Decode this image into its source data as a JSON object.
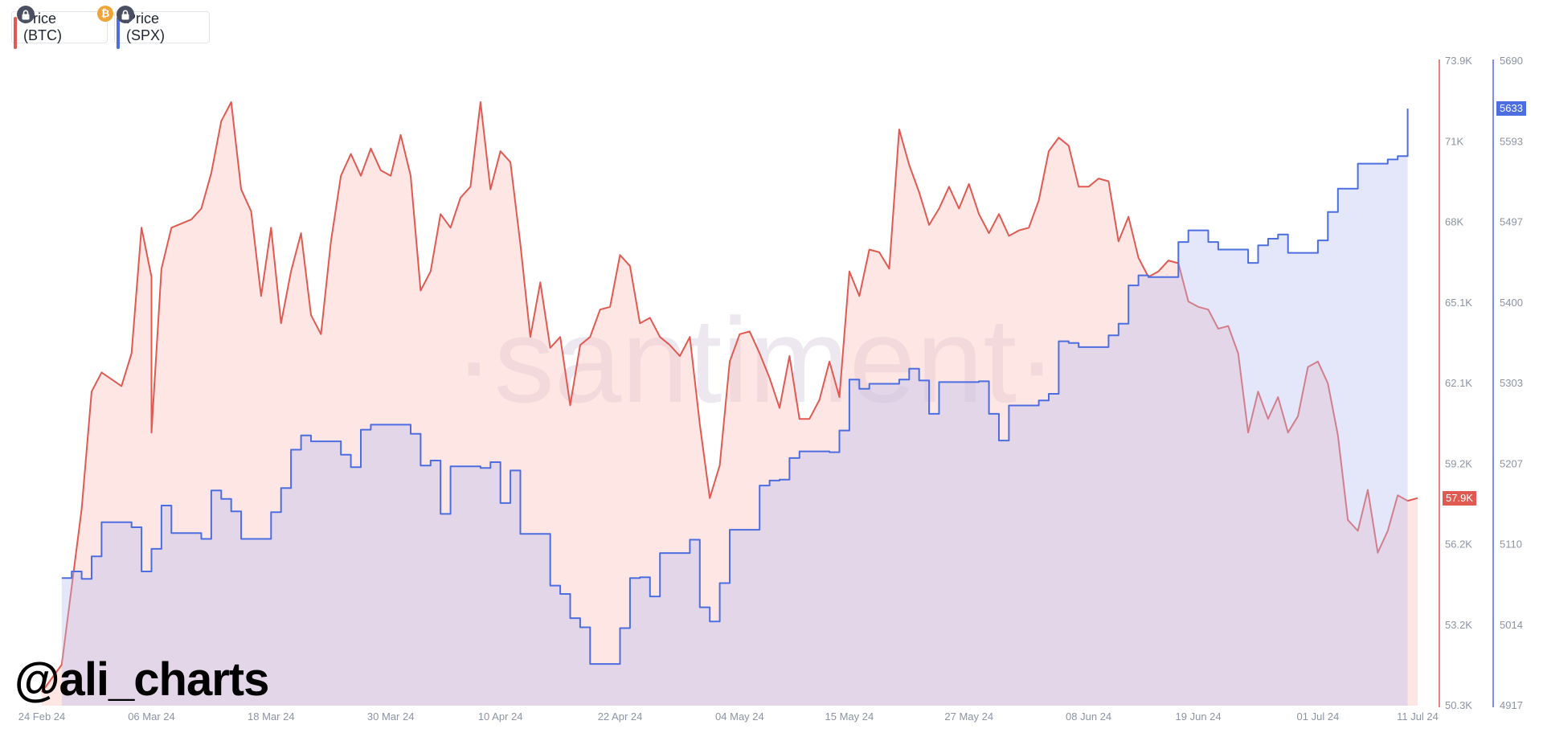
{
  "legend": {
    "btc_label": "Price (BTC)",
    "spx_label": "Price (SPX)",
    "btc_color": "#e05a52",
    "spx_color": "#4d6ee0",
    "coin_symbol": "₿"
  },
  "watermark": {
    "brand": "·santiment·",
    "handle": "@ali_charts"
  },
  "chart_data": {
    "type": "area",
    "x_labels": [
      "24 Feb 24",
      "06 Mar 24",
      "18 Mar 24",
      "30 Mar 24",
      "10 Apr 24",
      "22 Apr 24",
      "04 May 24",
      "15 May 24",
      "27 May 24",
      "08 Jun 24",
      "19 Jun 24",
      "01 Jul 24",
      "11 Jul 24"
    ],
    "btc_axis": {
      "ticks": [
        "73.9K",
        "71K",
        "68K",
        "65.1K",
        "62.1K",
        "59.2K",
        "56.2K",
        "53.2K",
        "50.3K"
      ],
      "min": 50300,
      "max": 73900
    },
    "spx_axis": {
      "ticks": [
        "5690",
        "5593",
        "5497",
        "5400",
        "5303",
        "5207",
        "5110",
        "5014",
        "4917"
      ],
      "min": 4917,
      "max": 5690
    },
    "current": {
      "btc_label": "57.9K",
      "btc_value": 57900,
      "spx_label": "5633",
      "spx_value": 5633
    },
    "series": [
      {
        "name": "Price (BTC)",
        "axis": "btc",
        "points": [
          [
            "24 Feb 24",
            50800
          ],
          [
            "26 Feb 24",
            51800
          ],
          [
            "28 Feb 24",
            57500
          ],
          [
            "29 Feb 24",
            61800
          ],
          [
            "01 Mar 24",
            62500
          ],
          [
            "03 Mar 24",
            62000
          ],
          [
            "04 Mar 24",
            63200
          ],
          [
            "05 Mar 24",
            67800
          ],
          [
            "06 Mar 24",
            66000
          ],
          [
            "06 Mar 24",
            60300
          ],
          [
            "07 Mar 24",
            66300
          ],
          [
            "08 Mar 24",
            67800
          ],
          [
            "10 Mar 24",
            68100
          ],
          [
            "11 Mar 24",
            68500
          ],
          [
            "12 Mar 24",
            69800
          ],
          [
            "13 Mar 24",
            71700
          ],
          [
            "14 Mar 24",
            72400
          ],
          [
            "15 Mar 24",
            69200
          ],
          [
            "16 Mar 24",
            68400
          ],
          [
            "17 Mar 24",
            65300
          ],
          [
            "18 Mar 24",
            67800
          ],
          [
            "19 Mar 24",
            64300
          ],
          [
            "20 Mar 24",
            66200
          ],
          [
            "21 Mar 24",
            67600
          ],
          [
            "22 Mar 24",
            64600
          ],
          [
            "23 Mar 24",
            63900
          ],
          [
            "24 Mar 24",
            67300
          ],
          [
            "25 Mar 24",
            69700
          ],
          [
            "26 Mar 24",
            70500
          ],
          [
            "27 Mar 24",
            69700
          ],
          [
            "28 Mar 24",
            70700
          ],
          [
            "29 Mar 24",
            69900
          ],
          [
            "30 Mar 24",
            69700
          ],
          [
            "31 Mar 24",
            71200
          ],
          [
            "01 Apr 24",
            69700
          ],
          [
            "02 Apr 24",
            65500
          ],
          [
            "03 Apr 24",
            66200
          ],
          [
            "04 Apr 24",
            68300
          ],
          [
            "05 Apr 24",
            67800
          ],
          [
            "06 Apr 24",
            68900
          ],
          [
            "07 Apr 24",
            69300
          ],
          [
            "08 Apr 24",
            72400
          ],
          [
            "09 Apr 24",
            69200
          ],
          [
            "10 Apr 24",
            70600
          ],
          [
            "11 Apr 24",
            70200
          ],
          [
            "12 Apr 24",
            67200
          ],
          [
            "13 Apr 24",
            63800
          ],
          [
            "14 Apr 24",
            65800
          ],
          [
            "15 Apr 24",
            63400
          ],
          [
            "16 Apr 24",
            63800
          ],
          [
            "17 Apr 24",
            61300
          ],
          [
            "18 Apr 24",
            63500
          ],
          [
            "19 Apr 24",
            63800
          ],
          [
            "20 Apr 24",
            64800
          ],
          [
            "21 Apr 24",
            64900
          ],
          [
            "22 Apr 24",
            66800
          ],
          [
            "23 Apr 24",
            66400
          ],
          [
            "24 Apr 24",
            64300
          ],
          [
            "25 Apr 24",
            64500
          ],
          [
            "26 Apr 24",
            63800
          ],
          [
            "27 Apr 24",
            63500
          ],
          [
            "28 Apr 24",
            63100
          ],
          [
            "29 Apr 24",
            63800
          ],
          [
            "30 Apr 24",
            60600
          ],
          [
            "01 May 24",
            57900
          ],
          [
            "02 May 24",
            59100
          ],
          [
            "03 May 24",
            62900
          ],
          [
            "04 May 24",
            63900
          ],
          [
            "05 May 24",
            64000
          ],
          [
            "06 May 24",
            63200
          ],
          [
            "07 May 24",
            62300
          ],
          [
            "08 May 24",
            61200
          ],
          [
            "09 May 24",
            63100
          ],
          [
            "10 May 24",
            60800
          ],
          [
            "11 May 24",
            60800
          ],
          [
            "12 May 24",
            61500
          ],
          [
            "13 May 24",
            62900
          ],
          [
            "14 May 24",
            61600
          ],
          [
            "15 May 24",
            66200
          ],
          [
            "16 May 24",
            65300
          ],
          [
            "17 May 24",
            67000
          ],
          [
            "18 May 24",
            66900
          ],
          [
            "19 May 24",
            66300
          ],
          [
            "20 May 24",
            71400
          ],
          [
            "21 May 24",
            70100
          ],
          [
            "22 May 24",
            69100
          ],
          [
            "23 May 24",
            67900
          ],
          [
            "24 May 24",
            68500
          ],
          [
            "25 May 24",
            69300
          ],
          [
            "26 May 24",
            68500
          ],
          [
            "27 May 24",
            69400
          ],
          [
            "28 May 24",
            68300
          ],
          [
            "29 May 24",
            67600
          ],
          [
            "30 May 24",
            68300
          ],
          [
            "31 May 24",
            67500
          ],
          [
            "01 Jun 24",
            67700
          ],
          [
            "02 Jun 24",
            67800
          ],
          [
            "03 Jun 24",
            68800
          ],
          [
            "04 Jun 24",
            70600
          ],
          [
            "05 Jun 24",
            71100
          ],
          [
            "06 Jun 24",
            70800
          ],
          [
            "07 Jun 24",
            69300
          ],
          [
            "08 Jun 24",
            69300
          ],
          [
            "09 Jun 24",
            69600
          ],
          [
            "10 Jun 24",
            69500
          ],
          [
            "11 Jun 24",
            67300
          ],
          [
            "12 Jun 24",
            68200
          ],
          [
            "13 Jun 24",
            66700
          ],
          [
            "14 Jun 24",
            66000
          ],
          [
            "15 Jun 24",
            66200
          ],
          [
            "16 Jun 24",
            66600
          ],
          [
            "17 Jun 24",
            66500
          ],
          [
            "18 Jun 24",
            65100
          ],
          [
            "19 Jun 24",
            64900
          ],
          [
            "20 Jun 24",
            64800
          ],
          [
            "21 Jun 24",
            64100
          ],
          [
            "22 Jun 24",
            64200
          ],
          [
            "23 Jun 24",
            63200
          ],
          [
            "24 Jun 24",
            60300
          ],
          [
            "25 Jun 24",
            61800
          ],
          [
            "26 Jun 24",
            60800
          ],
          [
            "27 Jun 24",
            61600
          ],
          [
            "28 Jun 24",
            60300
          ],
          [
            "29 Jun 24",
            60900
          ],
          [
            "30 Jun 24",
            62700
          ],
          [
            "01 Jul 24",
            62900
          ],
          [
            "02 Jul 24",
            62100
          ],
          [
            "03 Jul 24",
            60200
          ],
          [
            "04 Jul 24",
            57100
          ],
          [
            "05 Jul 24",
            56700
          ],
          [
            "06 Jul 24",
            58200
          ],
          [
            "07 Jul 24",
            55900
          ],
          [
            "08 Jul 24",
            56700
          ],
          [
            "09 Jul 24",
            58000
          ],
          [
            "10 Jul 24",
            57800
          ],
          [
            "11 Jul 24",
            57900
          ]
        ]
      },
      {
        "name": "Price (SPX)",
        "axis": "spx",
        "points": [
          [
            "26 Feb 24",
            5070
          ],
          [
            "27 Feb 24",
            5078
          ],
          [
            "28 Feb 24",
            5069
          ],
          [
            "29 Feb 24",
            5096
          ],
          [
            "01 Mar 24",
            5137
          ],
          [
            "04 Mar 24",
            5131
          ],
          [
            "05 Mar 24",
            5078
          ],
          [
            "06 Mar 24",
            5105
          ],
          [
            "07 Mar 24",
            5157
          ],
          [
            "08 Mar 24",
            5124
          ],
          [
            "11 Mar 24",
            5117
          ],
          [
            "12 Mar 24",
            5175
          ],
          [
            "13 Mar 24",
            5165
          ],
          [
            "14 Mar 24",
            5150
          ],
          [
            "15 Mar 24",
            5117
          ],
          [
            "18 Mar 24",
            5149
          ],
          [
            "19 Mar 24",
            5178
          ],
          [
            "20 Mar 24",
            5224
          ],
          [
            "21 Mar 24",
            5241
          ],
          [
            "22 Mar 24",
            5234
          ],
          [
            "25 Mar 24",
            5218
          ],
          [
            "26 Mar 24",
            5203
          ],
          [
            "27 Mar 24",
            5248
          ],
          [
            "28 Mar 24",
            5254
          ],
          [
            "01 Apr 24",
            5243
          ],
          [
            "02 Apr 24",
            5205
          ],
          [
            "03 Apr 24",
            5211
          ],
          [
            "04 Apr 24",
            5147
          ],
          [
            "05 Apr 24",
            5204
          ],
          [
            "08 Apr 24",
            5202
          ],
          [
            "09 Apr 24",
            5209
          ],
          [
            "10 Apr 24",
            5160
          ],
          [
            "11 Apr 24",
            5199
          ],
          [
            "12 Apr 24",
            5123
          ],
          [
            "15 Apr 24",
            5061
          ],
          [
            "16 Apr 24",
            5051
          ],
          [
            "17 Apr 24",
            5022
          ],
          [
            "18 Apr 24",
            5011
          ],
          [
            "19 Apr 24",
            4967
          ],
          [
            "22 Apr 24",
            5010
          ],
          [
            "23 Apr 24",
            5070
          ],
          [
            "24 Apr 24",
            5071
          ],
          [
            "25 Apr 24",
            5048
          ],
          [
            "26 Apr 24",
            5100
          ],
          [
            "29 Apr 24",
            5116
          ],
          [
            "30 Apr 24",
            5035
          ],
          [
            "01 May 24",
            5018
          ],
          [
            "02 May 24",
            5064
          ],
          [
            "03 May 24",
            5128
          ],
          [
            "06 May 24",
            5181
          ],
          [
            "07 May 24",
            5187
          ],
          [
            "08 May 24",
            5188
          ],
          [
            "09 May 24",
            5214
          ],
          [
            "10 May 24",
            5222
          ],
          [
            "13 May 24",
            5221
          ],
          [
            "14 May 24",
            5247
          ],
          [
            "15 May 24",
            5308
          ],
          [
            "16 May 24",
            5297
          ],
          [
            "17 May 24",
            5303
          ],
          [
            "20 May 24",
            5308
          ],
          [
            "21 May 24",
            5321
          ],
          [
            "22 May 24",
            5307
          ],
          [
            "23 May 24",
            5267
          ],
          [
            "24 May 24",
            5305
          ],
          [
            "28 May 24",
            5306
          ],
          [
            "29 May 24",
            5267
          ],
          [
            "30 May 24",
            5235
          ],
          [
            "31 May 24",
            5277
          ],
          [
            "03 Jun 24",
            5283
          ],
          [
            "04 Jun 24",
            5291
          ],
          [
            "05 Jun 24",
            5354
          ],
          [
            "06 Jun 24",
            5352
          ],
          [
            "07 Jun 24",
            5347
          ],
          [
            "10 Jun 24",
            5361
          ],
          [
            "11 Jun 24",
            5375
          ],
          [
            "12 Jun 24",
            5421
          ],
          [
            "13 Jun 24",
            5433
          ],
          [
            "14 Jun 24",
            5431
          ],
          [
            "17 Jun 24",
            5473
          ],
          [
            "18 Jun 24",
            5487
          ],
          [
            "20 Jun 24",
            5473
          ],
          [
            "21 Jun 24",
            5464
          ],
          [
            "24 Jun 24",
            5448
          ],
          [
            "25 Jun 24",
            5469
          ],
          [
            "26 Jun 24",
            5477
          ],
          [
            "27 Jun 24",
            5482
          ],
          [
            "28 Jun 24",
            5460
          ],
          [
            "01 Jul 24",
            5475
          ],
          [
            "02 Jul 24",
            5509
          ],
          [
            "03 Jul 24",
            5537
          ],
          [
            "05 Jul 24",
            5567
          ],
          [
            "08 Jul 24",
            5572
          ],
          [
            "09 Jul 24",
            5576
          ],
          [
            "10 Jul 24",
            5633
          ]
        ]
      }
    ]
  }
}
